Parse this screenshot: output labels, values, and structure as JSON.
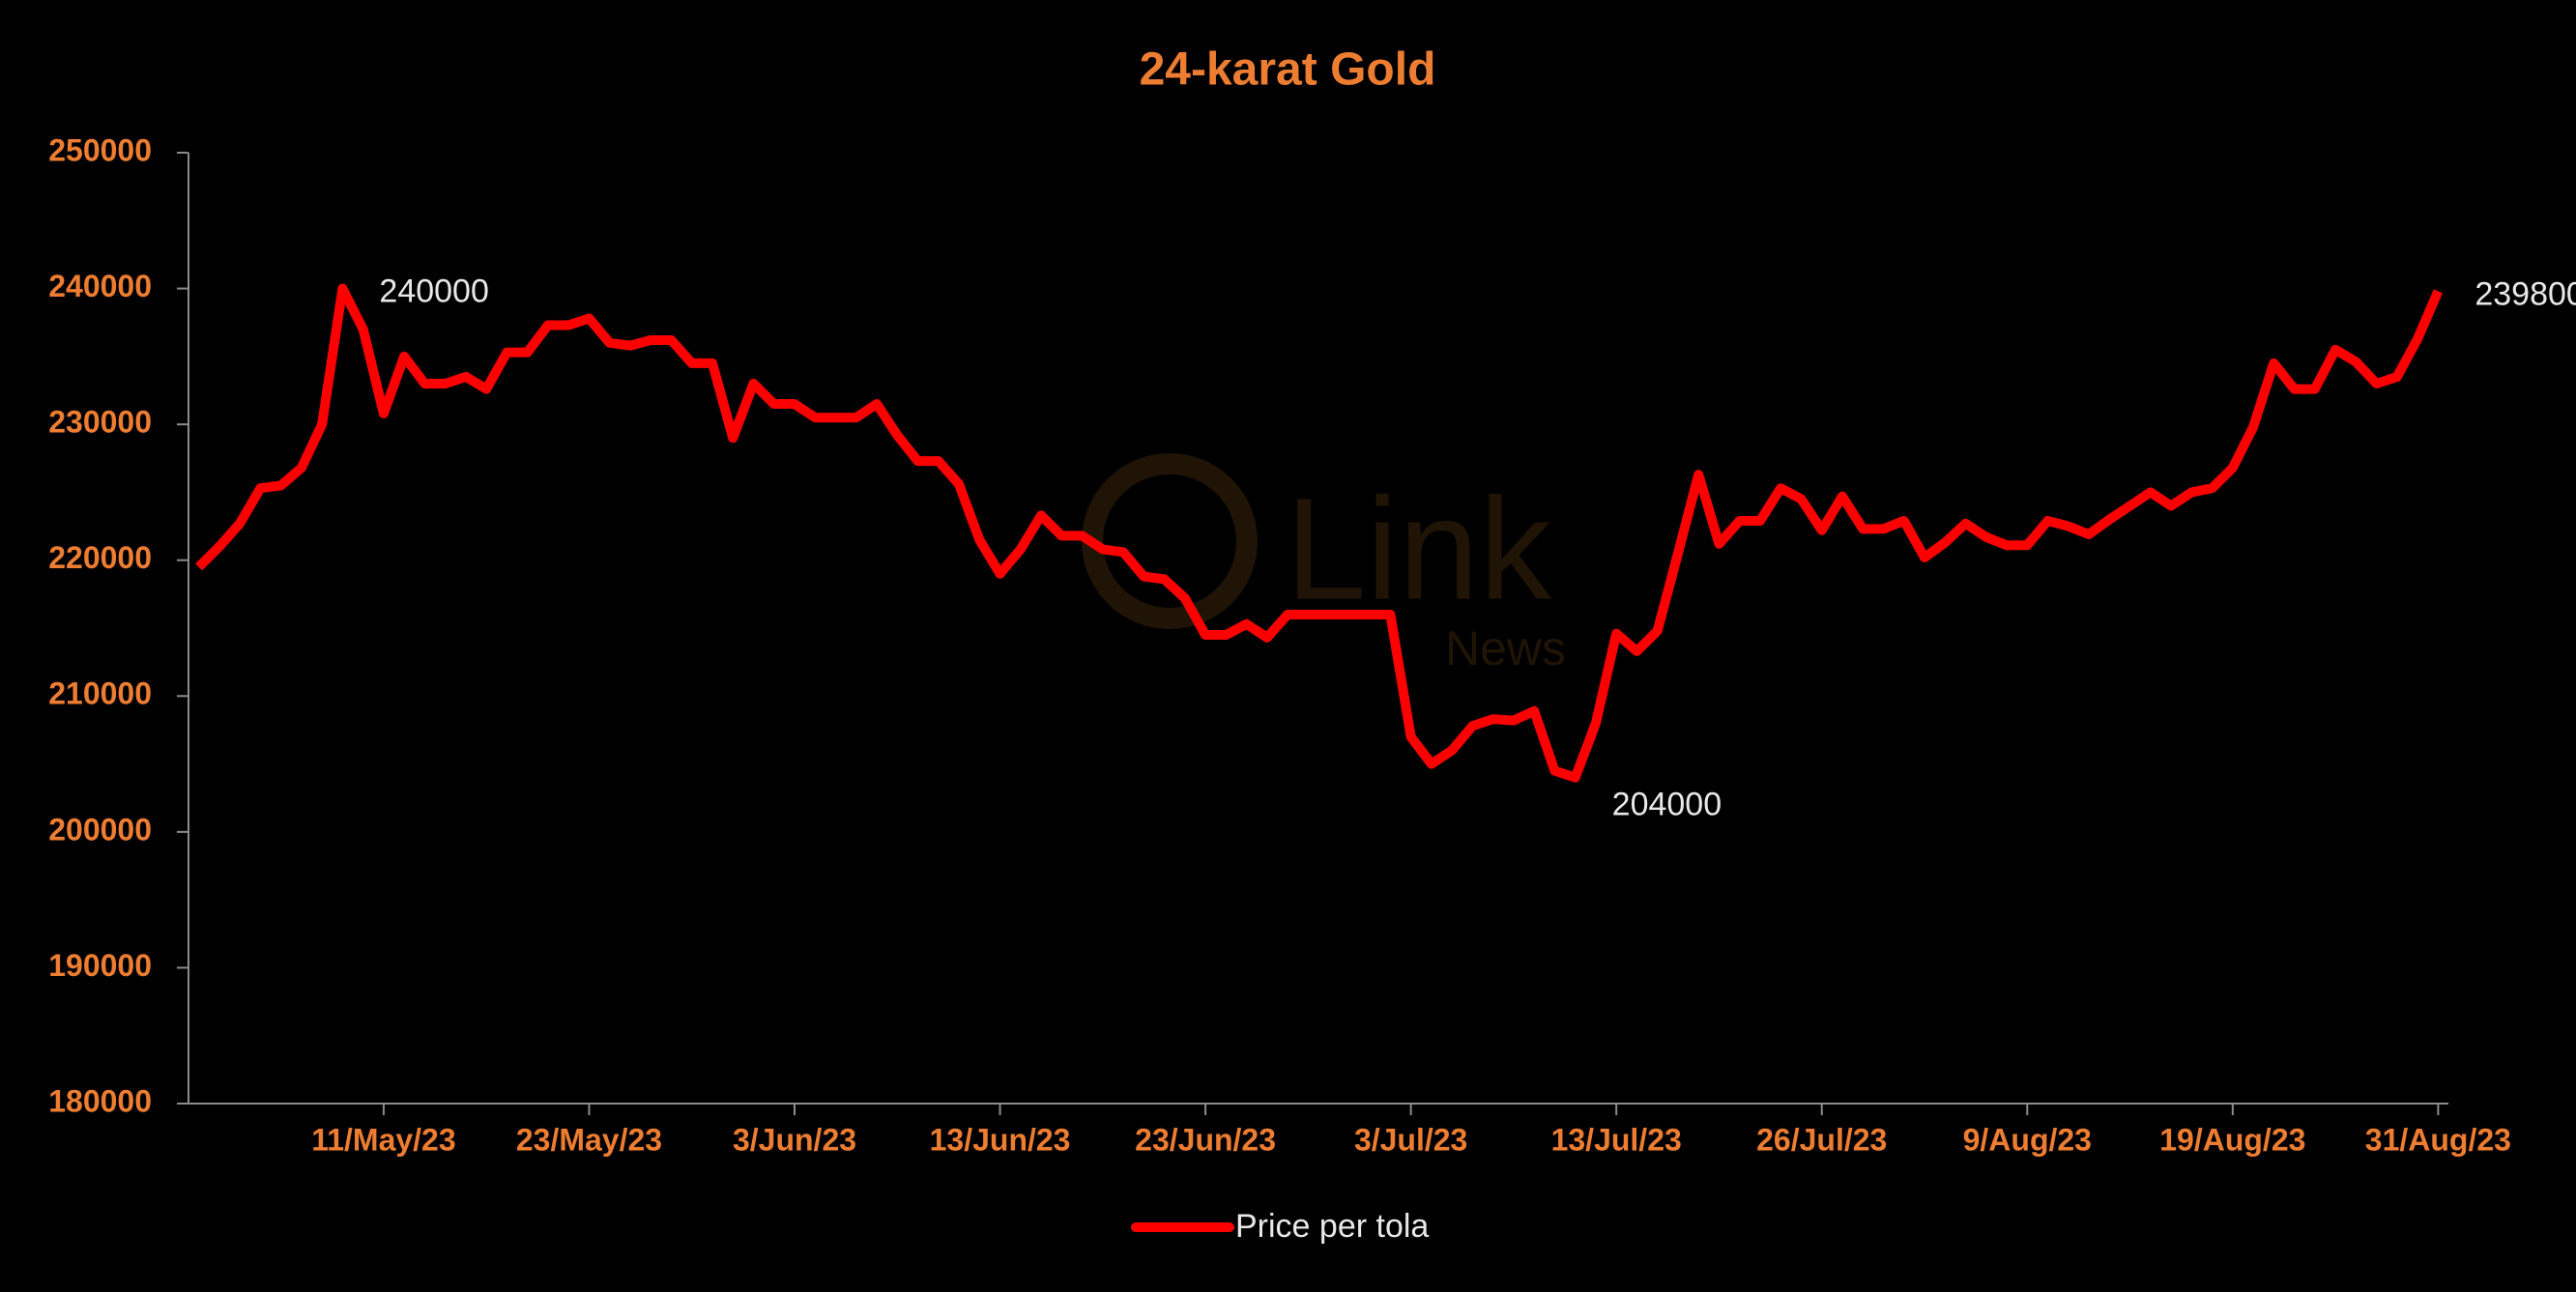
{
  "chart_data": {
    "type": "line",
    "title": "24-karat Gold",
    "watermark": "Link",
    "watermark_sub": "News",
    "categories": [
      null,
      null,
      null,
      null,
      null,
      null,
      null,
      null,
      null,
      "11/May/23",
      null,
      null,
      null,
      null,
      null,
      null,
      null,
      null,
      null,
      "23/May/23",
      null,
      null,
      null,
      null,
      null,
      null,
      null,
      null,
      null,
      "3/Jun/23",
      null,
      null,
      null,
      null,
      null,
      null,
      null,
      null,
      null,
      "13/Jun/23",
      null,
      null,
      null,
      null,
      null,
      null,
      null,
      null,
      null,
      "23/Jun/23",
      null,
      null,
      null,
      null,
      null,
      null,
      null,
      null,
      null,
      "3/Jul/23",
      null,
      null,
      null,
      null,
      null,
      null,
      null,
      null,
      null,
      "13/Jul/23",
      null,
      null,
      null,
      null,
      null,
      null,
      null,
      null,
      null,
      "26/Jul/23",
      null,
      null,
      null,
      null,
      null,
      null,
      null,
      null,
      null,
      "9/Aug/23",
      null,
      null,
      null,
      null,
      null,
      null,
      null,
      null,
      null,
      "19/Aug/23",
      null,
      null,
      null,
      null,
      null,
      null,
      null,
      null,
      null,
      "31/Aug/23"
    ],
    "series": [
      {
        "name": "Price per tola",
        "color": "#ff0000",
        "values": [
          219500,
          221000,
          222700,
          225300,
          225500,
          226800,
          230000,
          240000,
          237000,
          230800,
          235000,
          233000,
          233000,
          233500,
          232600,
          235300,
          235300,
          237300,
          237300,
          237800,
          236000,
          235800,
          236200,
          236200,
          234500,
          234500,
          229000,
          233000,
          231500,
          231500,
          230500,
          230500,
          230500,
          231500,
          229200,
          227300,
          227300,
          225600,
          221500,
          219000,
          220800,
          223300,
          221800,
          221800,
          220800,
          220600,
          218800,
          218600,
          217200,
          214500,
          214500,
          215300,
          214300,
          216000,
          216000,
          216000,
          216000,
          216000,
          216000,
          207000,
          205000,
          206000,
          207800,
          208300,
          208200,
          208900,
          204500,
          204000,
          208000,
          214600,
          213300,
          214800,
          220500,
          226300,
          221200,
          222900,
          222900,
          225300,
          224500,
          222200,
          224700,
          222300,
          222300,
          222900,
          220200,
          221300,
          222700,
          221700,
          221100,
          221100,
          222900,
          222500,
          221900,
          223000,
          224000,
          225000,
          224000,
          225000,
          225300,
          226800,
          229800,
          234500,
          232600,
          232600,
          235500,
          234600,
          233000,
          233500,
          236300,
          239800
        ]
      }
    ],
    "ylim": [
      180000,
      250000
    ],
    "yticks": [
      180000,
      190000,
      200000,
      210000,
      220000,
      230000,
      240000,
      250000
    ],
    "grid": false,
    "legend": "bottom"
  }
}
